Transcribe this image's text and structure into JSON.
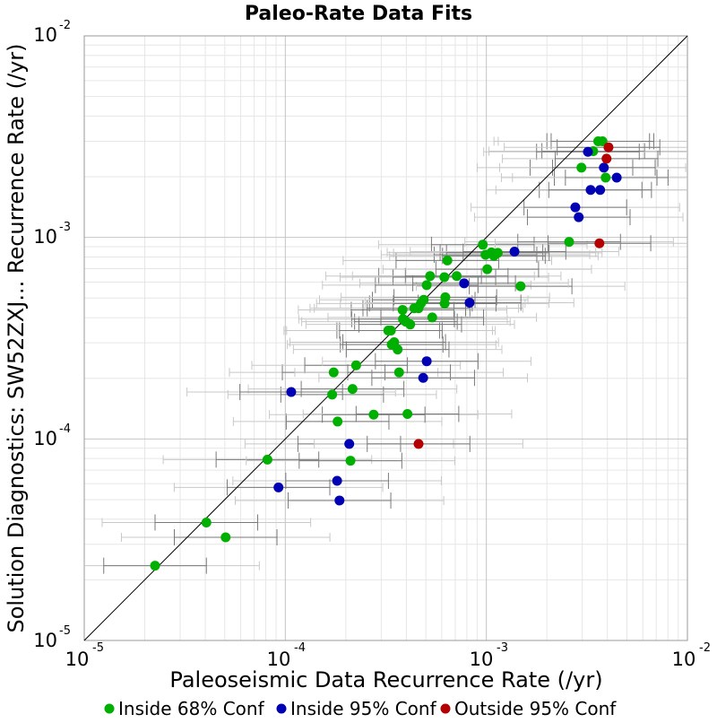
{
  "chart_data": {
    "type": "scatter",
    "title": "Paleo-Rate Data Fits",
    "xlabel": "Paleoseismic Data Recurrence Rate (/yr)",
    "ylabel": "Solution Diagnostics: SW52ZXJ... Recurrence Rate (/yr)",
    "x_scale": "log",
    "y_scale": "log",
    "xlim": [
      1e-05,
      0.01
    ],
    "ylim": [
      1e-05,
      0.01
    ],
    "grid": true,
    "reference_line": "y = x",
    "tick_labels": [
      {
        "base": "10",
        "exp": "-5"
      },
      {
        "base": "10",
        "exp": "-4"
      },
      {
        "base": "10",
        "exp": "-3"
      },
      {
        "base": "10",
        "exp": "-2"
      }
    ],
    "legend_position": "bottom",
    "colors": {
      "inside_68": "#00b000",
      "inside_95": "#0000b4",
      "outside_95": "#b40000",
      "error_bar_68": "#7a7a7a",
      "error_bar_95": "#c8c8c8"
    },
    "series": [
      {
        "name": "Inside 68% Conf",
        "color": "#00b000",
        "points": [
          [
            2.25e-05,
            2.35e-05
          ],
          [
            4.05e-05,
            3.85e-05
          ],
          [
            5.05e-05,
            3.25e-05
          ],
          [
            8.15e-05,
            7.9e-05
          ],
          [
            0.000171,
            0.000166
          ],
          [
            0.000174,
            0.000214
          ],
          [
            0.000182,
            0.000122
          ],
          [
            0.000211,
            7.8e-05
          ],
          [
            0.000216,
            0.000177
          ],
          [
            0.000225,
            0.000232
          ],
          [
            0.000275,
            0.000132
          ],
          [
            0.000325,
            0.000345
          ],
          [
            0.000335,
            0.000345
          ],
          [
            0.000338,
            0.000294
          ],
          [
            0.000348,
            0.000302
          ],
          [
            0.000362,
            0.000278
          ],
          [
            0.000368,
            0.000214
          ],
          [
            0.000383,
            0.000437
          ],
          [
            0.000385,
            0.000393
          ],
          [
            0.000398,
            0.000382
          ],
          [
            0.000405,
            0.000133
          ],
          [
            0.000418,
            0.00037
          ],
          [
            0.000438,
            0.000445
          ],
          [
            0.00046,
            0.000445
          ],
          [
            0.000472,
            0.00047
          ],
          [
            0.000488,
            0.00049
          ],
          [
            0.000505,
            0.00058
          ],
          [
            0.000525,
            0.000643
          ],
          [
            0.000538,
            0.000401
          ],
          [
            0.000618,
            0.000635
          ],
          [
            0.00062,
            0.00047
          ],
          [
            0.000625,
            0.000505
          ],
          [
            0.00064,
            0.000768
          ],
          [
            0.000712,
            0.000643
          ],
          [
            0.00096,
            0.00092
          ],
          [
            0.00099,
            0.00082
          ],
          [
            0.00101,
            0.000695
          ],
          [
            0.00106,
            0.000843
          ],
          [
            0.00109,
            0.00081
          ],
          [
            0.00114,
            0.000838
          ],
          [
            0.00148,
            0.000572
          ],
          [
            0.00258,
            0.00095
          ],
          [
            0.00297,
            0.00222
          ],
          [
            0.0034,
            0.00268
          ],
          [
            0.0036,
            0.003
          ],
          [
            0.00378,
            0.003
          ],
          [
            0.00392,
            0.00198
          ]
        ]
      },
      {
        "name": "Inside 95% Conf",
        "color": "#0000b4",
        "points": [
          [
            9.25e-05,
            5.75e-05
          ],
          [
            0.000107,
            0.000171
          ],
          [
            0.000181,
            6.2e-05
          ],
          [
            0.000186,
            4.95e-05
          ],
          [
            0.000208,
            9.45e-05
          ],
          [
            0.000485,
            0.000201
          ],
          [
            0.000505,
            0.000243
          ],
          [
            0.000775,
            0.000592
          ],
          [
            0.000825,
            0.000474
          ],
          [
            0.00138,
            0.00085
          ],
          [
            0.00277,
            0.00141
          ],
          [
            0.00288,
            0.00126
          ],
          [
            0.0032,
            0.00266
          ],
          [
            0.0033,
            0.00172
          ],
          [
            0.00368,
            0.00172
          ],
          [
            0.00384,
            0.00222
          ],
          [
            0.00445,
            0.00198
          ]
        ]
      },
      {
        "name": "Outside 95% Conf",
        "color": "#b40000",
        "points": [
          [
            0.00046,
            9.45e-05
          ],
          [
            0.00365,
            0.000935
          ],
          [
            0.00396,
            0.00246
          ],
          [
            0.00405,
            0.0028
          ]
        ]
      }
    ]
  }
}
